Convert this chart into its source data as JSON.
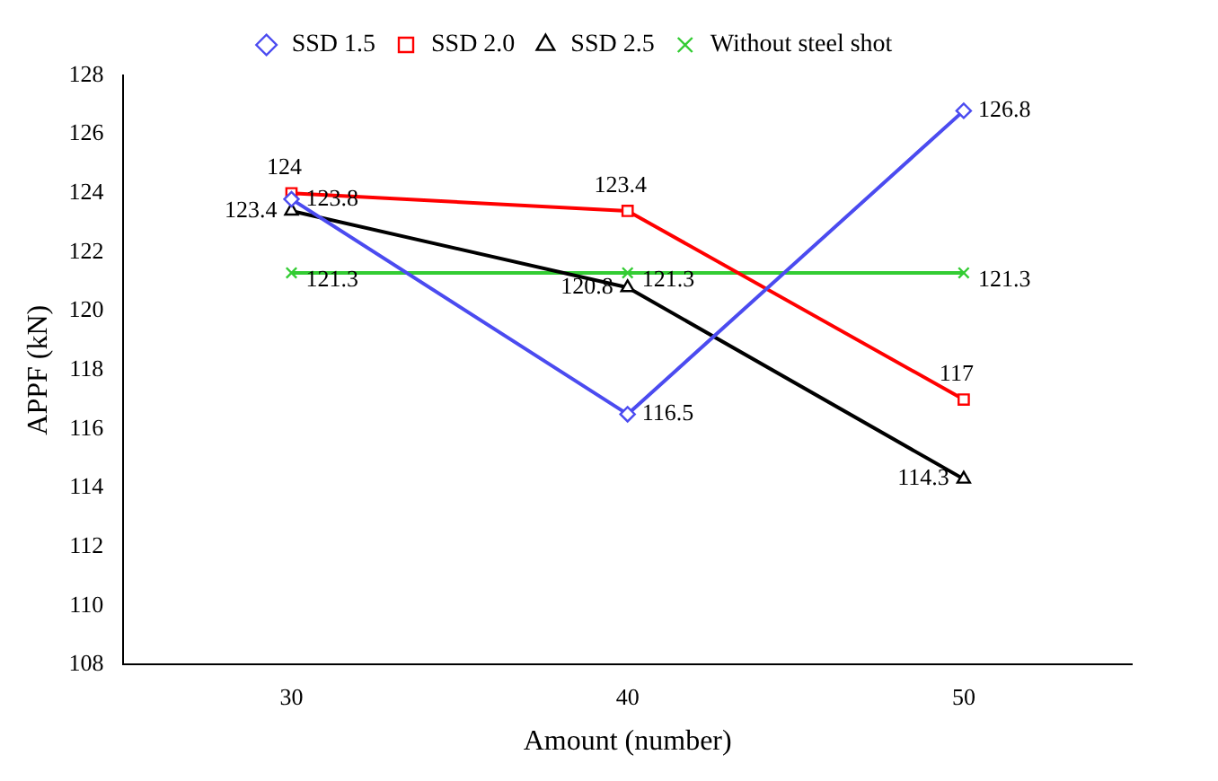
{
  "chart_data": {
    "type": "line",
    "xlabel": "Amount (number)",
    "ylabel": "APPF (kN)",
    "categories": [
      "30",
      "40",
      "50"
    ],
    "ylim": [
      108,
      128
    ],
    "yticks": [
      108,
      110,
      112,
      114,
      116,
      118,
      120,
      122,
      124,
      126,
      128
    ],
    "grid": false,
    "legend": "top",
    "data_labels": true,
    "line_style": "solid",
    "series": [
      {
        "name": "SSD 1.5",
        "color": "#4b4bf0",
        "marker": "diamond",
        "values": [
          123.8,
          116.5,
          126.8
        ]
      },
      {
        "name": "SSD 2.0",
        "color": "#ff0000",
        "marker": "square",
        "values": [
          124,
          123.4,
          117
        ]
      },
      {
        "name": "SSD 2.5",
        "color": "#000000",
        "marker": "triangle",
        "values": [
          123.4,
          120.8,
          114.3
        ]
      },
      {
        "name": "Without steel shot",
        "color": "#33cc33",
        "marker": "cross",
        "values": [
          121.3,
          121.3,
          121.3
        ]
      }
    ]
  }
}
